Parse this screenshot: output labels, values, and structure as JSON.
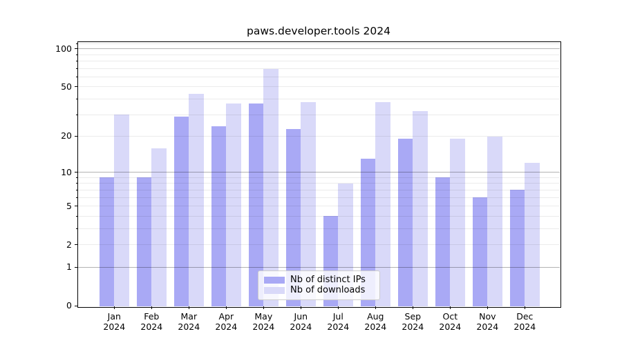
{
  "title": "paws.developer.tools 2024",
  "colors": {
    "distinct_ips": "#a9a9f5",
    "downloads": "#d9d9f9",
    "axis": "#000000",
    "grid_major": "rgba(0,0,0,0.30)",
    "grid_minor": "rgba(0,0,0,0.08)",
    "legend_border": "#cccccc",
    "legend_background": "rgba(255,255,255,0.8)"
  },
  "chart_data": {
    "type": "bar",
    "title": "paws.developer.tools 2024",
    "categories": [
      "Jan 2024",
      "Feb 2024",
      "Mar 2024",
      "Apr 2024",
      "May 2024",
      "Jun 2024",
      "Jul 2024",
      "Aug 2024",
      "Sep 2024",
      "Oct 2024",
      "Nov 2024",
      "Dec 2024"
    ],
    "xtick_months": [
      "Jan",
      "Feb",
      "Mar",
      "Apr",
      "May",
      "Jun",
      "Jul",
      "Aug",
      "Sep",
      "Oct",
      "Nov",
      "Dec"
    ],
    "xtick_year": "2024",
    "series": [
      {
        "key": "distinct_ips",
        "name": "Nb of distinct IPs",
        "color": "#a9a9f5",
        "values": [
          9,
          9,
          29,
          24,
          37,
          23,
          4,
          13,
          19,
          9,
          6,
          7
        ]
      },
      {
        "key": "downloads",
        "name": "Nb of downloads",
        "color": "#d9d9f9",
        "values": [
          30,
          16,
          44,
          37,
          69,
          38,
          8,
          38,
          32,
          19,
          20,
          12
        ]
      }
    ],
    "xlabel": "",
    "ylabel": "",
    "yscale": "log10(value+1)",
    "ylim": [
      0,
      115
    ],
    "yticks": [
      0,
      1,
      2,
      5,
      10,
      20,
      50,
      100
    ],
    "grid_major_at": [
      1,
      10,
      100
    ],
    "grid_minor_at": [
      2,
      3,
      4,
      5,
      6,
      7,
      8,
      9,
      20,
      30,
      40,
      50,
      60,
      70,
      80,
      90,
      110
    ],
    "grid": "on",
    "legend_position": "lower center"
  }
}
